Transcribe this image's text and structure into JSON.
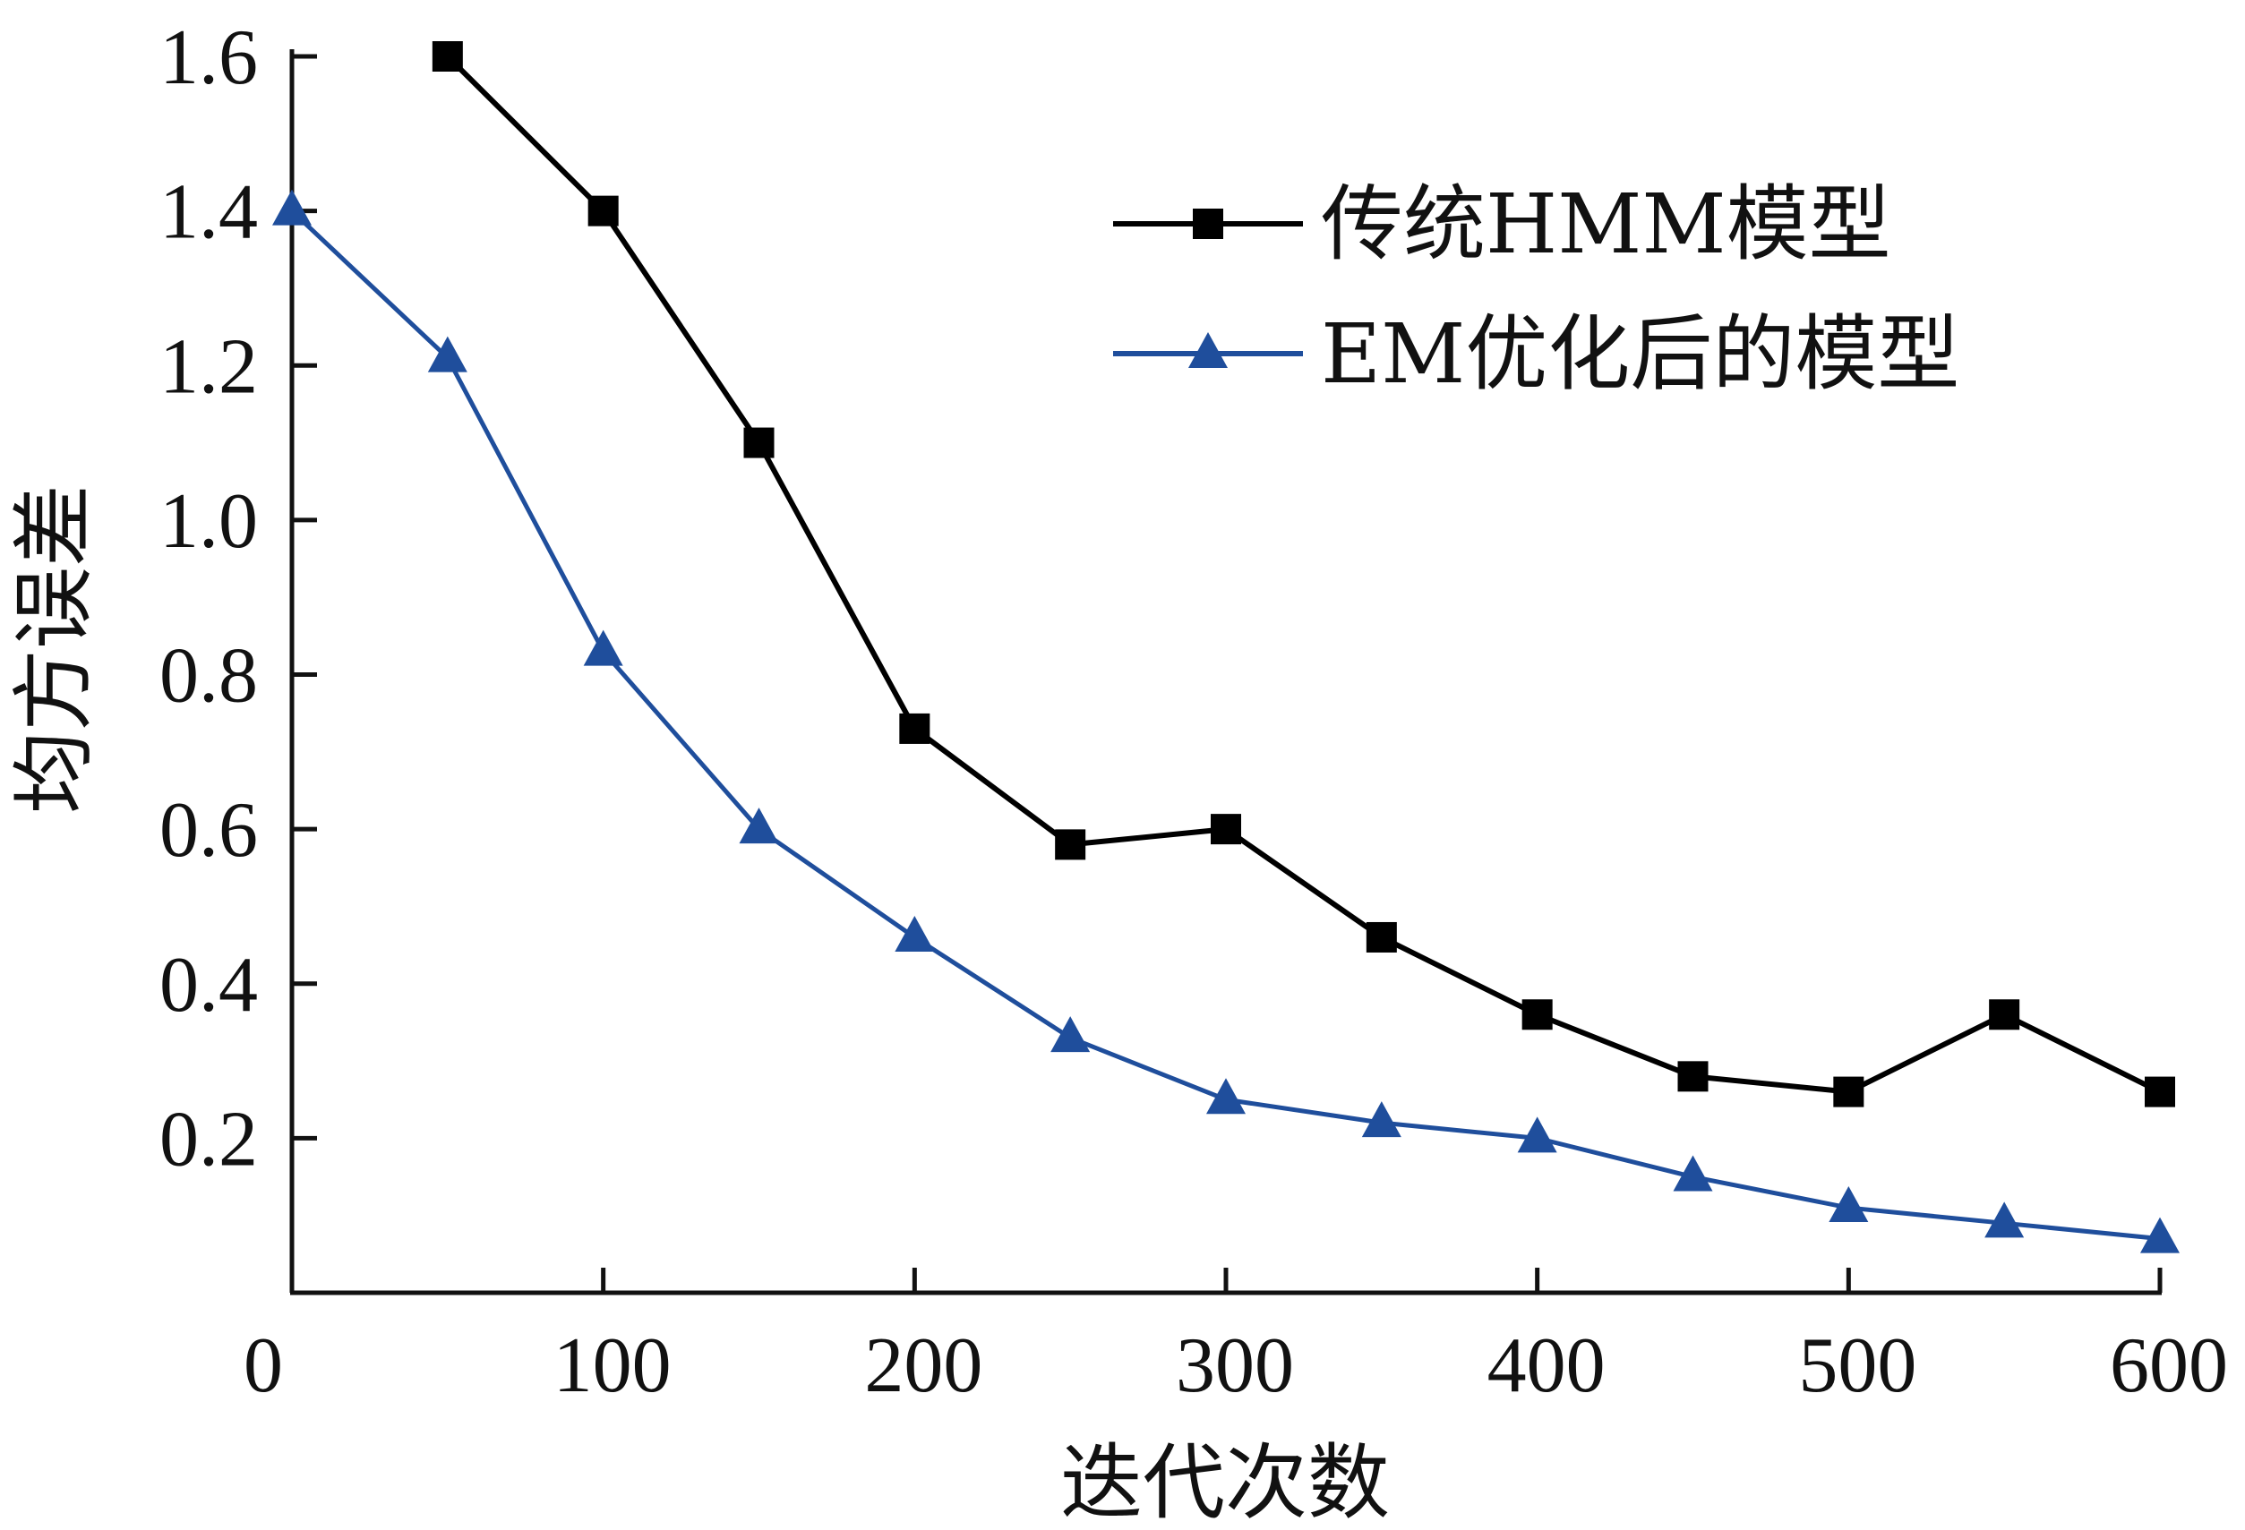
{
  "chart_data": {
    "type": "line",
    "title": "",
    "xlabel": "迭代次数",
    "ylabel": "均方误差",
    "xlim": [
      0,
      600
    ],
    "ylim": [
      0,
      1.6
    ],
    "xticks": [
      0,
      100,
      200,
      300,
      400,
      500,
      600
    ],
    "xtick_labels": [
      "0",
      "100",
      "200",
      "300",
      "400",
      "500",
      "600"
    ],
    "yticks": [
      0.2,
      0.4,
      0.6,
      0.8,
      1.0,
      1.2,
      1.4,
      1.6
    ],
    "ytick_labels": [
      "0.2",
      "0.4",
      "0.6",
      "0.8",
      "1.0",
      "1.2",
      "1.4",
      "1.6"
    ],
    "grid": false,
    "legend_position": "top-right",
    "series": [
      {
        "name": "传统HMM模型",
        "color": "#000000",
        "marker": "square",
        "x": [
          50,
          100,
          150,
          200,
          250,
          300,
          350,
          400,
          450,
          500,
          550,
          600
        ],
        "y": [
          1.6,
          1.4,
          1.1,
          0.73,
          0.58,
          0.6,
          0.46,
          0.36,
          0.28,
          0.26,
          0.36,
          0.26
        ]
      },
      {
        "name": "EM优化后的模型",
        "color": "#1f4e9c",
        "marker": "triangle",
        "x": [
          0,
          50,
          100,
          150,
          200,
          250,
          300,
          350,
          400,
          450,
          500,
          550,
          600
        ],
        "y": [
          1.4,
          1.21,
          0.83,
          0.6,
          0.46,
          0.33,
          0.25,
          0.22,
          0.2,
          0.15,
          0.11,
          0.09,
          0.07
        ]
      }
    ]
  }
}
